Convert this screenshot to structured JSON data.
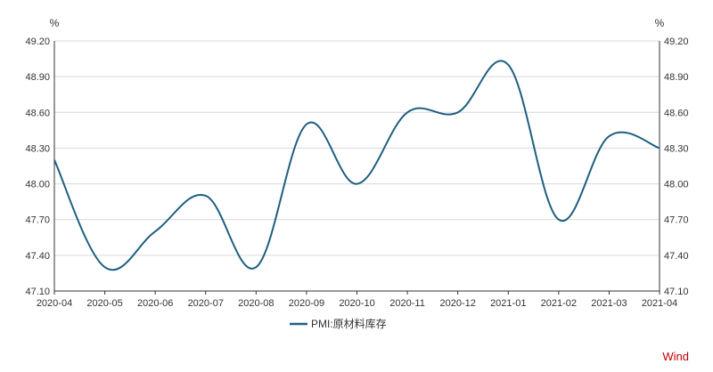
{
  "chart_data": {
    "type": "line",
    "title": "",
    "xlabel": "",
    "ylabel_left": "%",
    "ylabel_right": "%",
    "ylim": [
      47.1,
      49.2
    ],
    "yticks": [
      "47.10",
      "47.40",
      "47.70",
      "48.00",
      "48.30",
      "48.60",
      "48.90",
      "49.20"
    ],
    "ytick_values": [
      47.1,
      47.4,
      47.7,
      48.0,
      48.3,
      48.6,
      48.9,
      49.2
    ],
    "categories": [
      "2020-04",
      "2020-05",
      "2020-06",
      "2020-07",
      "2020-08",
      "2020-09",
      "2020-10",
      "2020-11",
      "2020-12",
      "2021-01",
      "2021-02",
      "2021-03",
      "2021-04"
    ],
    "grid": "horizontal",
    "legend_position": "bottom",
    "series": [
      {
        "name": "PMI:原材料库存",
        "color": "#1f5f7f",
        "values": [
          48.2,
          47.3,
          47.6,
          47.9,
          47.3,
          48.5,
          48.0,
          48.6,
          48.6,
          49.0,
          47.7,
          48.4,
          48.3
        ]
      }
    ]
  },
  "watermark": "Wind"
}
